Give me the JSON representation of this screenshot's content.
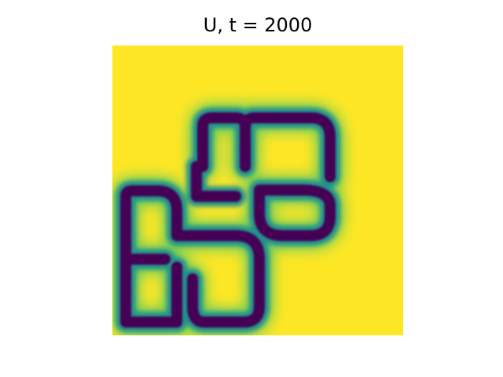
{
  "chart_data": {
    "type": "heatmap",
    "title": "U, t = 2000",
    "xlabel": "",
    "ylabel": "",
    "axes_visible": false,
    "colormap": "viridis",
    "value_range": [
      0,
      1
    ],
    "background_value": 1.0,
    "pattern_description_levels": {
      "ridge_min": 0.05,
      "halo": 0.45,
      "interior": 0.75
    }
  },
  "colors": {
    "viridis_low": "#440154",
    "viridis_mid": "#21918c",
    "viridis_high": "#fde725",
    "page_background": "#ffffff"
  }
}
